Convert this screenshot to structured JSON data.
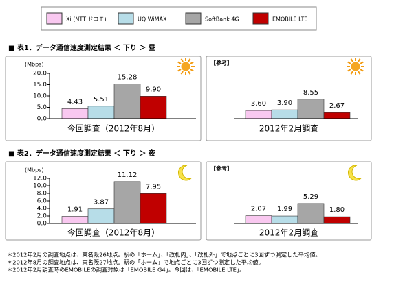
{
  "legend": [
    {
      "name": "Xi (NTT ドコモ)",
      "color": "#f9c8f0"
    },
    {
      "name": "UQ WiMAX",
      "color": "#b7dde8"
    },
    {
      "name": "SoftBank 4G",
      "color": "#a6a6a6"
    },
    {
      "name": "EMOBILE LTE",
      "color": "#c00000"
    }
  ],
  "sections": [
    "■ 表1．データ通信速度測定結果 ＜ 下り ＞ 昼",
    "■ 表2．データ通信速度測定結果 ＜ 下り ＞ 夜"
  ],
  "chart_data": [
    {
      "type": "bar",
      "unit": "(Mbps)",
      "caption": "今回調査（2012年8月）",
      "values": [
        4.43,
        5.51,
        15.28,
        9.9
      ],
      "value_labels": [
        "4.43",
        "5.51",
        "15.28",
        "9.90"
      ],
      "ylim": [
        0,
        20
      ],
      "yticks": [
        {
          "value": 0,
          "label": "0.0"
        },
        {
          "value": 5,
          "label": "5.0"
        },
        {
          "value": 10,
          "label": "10.0"
        },
        {
          "value": 15,
          "label": "15.0"
        },
        {
          "value": 20,
          "label": "20.0"
        }
      ]
    },
    {
      "type": "bar",
      "label": "【参考】",
      "caption": "2012年2月調査",
      "values": [
        3.6,
        3.9,
        8.55,
        2.67
      ],
      "value_labels": [
        "3.60",
        "3.90",
        "8.55",
        "2.67"
      ],
      "ylim": [
        0,
        20
      ]
    },
    {
      "type": "bar",
      "unit": "(Mbps)",
      "caption": "今回調査（2012年8月）",
      "values": [
        1.91,
        3.87,
        11.12,
        7.95
      ],
      "value_labels": [
        "1.91",
        "3.87",
        "11.12",
        "7.95"
      ],
      "ylim": [
        0,
        12
      ],
      "yticks": [
        {
          "value": 0,
          "label": "0.0"
        },
        {
          "value": 2,
          "label": "2.0"
        },
        {
          "value": 4,
          "label": "4.0"
        },
        {
          "value": 6,
          "label": "6.0"
        },
        {
          "value": 8,
          "label": "8.0"
        },
        {
          "value": 10,
          "label": "10.0"
        },
        {
          "value": 12,
          "label": "12.0"
        }
      ]
    },
    {
      "type": "bar",
      "label": "【参考】",
      "caption": "2012年2月調査",
      "values": [
        2.07,
        1.99,
        5.29,
        1.8
      ],
      "value_labels": [
        "2.07",
        "1.99",
        "5.29",
        "1.80"
      ],
      "ylim": [
        0,
        12
      ]
    }
  ],
  "notes": [
    "＊2012年2月の調査地点は、東名阪26地点。駅の「ホーム」、「改札内」、「改札外」で地点ごとに3回ずつ測定した平均値。",
    "＊2012年8月の調査地点は、東名阪27地点。駅の「ホーム」で地点ごとに3回ずつ測定した平均値。",
    "＊2012年2月調査時のEMOBILEの調査対象は「EMOBILE G4」。今回は、「EMOBILE LTE」。"
  ]
}
